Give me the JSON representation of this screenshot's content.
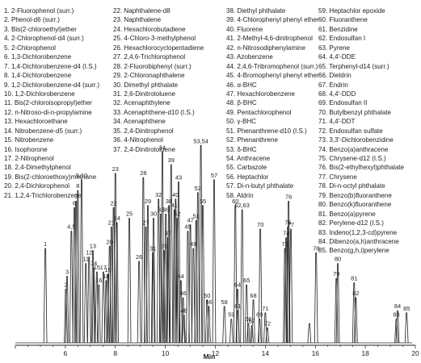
{
  "chart_data": {
    "type": "line",
    "xlabel": "Min",
    "xlim": [
      4,
      20
    ],
    "x_ticks": [
      "6",
      "8",
      "10",
      "12",
      "14",
      "16",
      "18",
      "20"
    ],
    "compounds": [
      "1. 2-Fluorophenol (surr.)",
      "2. Phenol-d6 (surr.)",
      "3. Bis(2-chloroethyl)ether",
      "4. 2-Chlorophenol-d4 (surr.)",
      "5. 2-Chlorophenol",
      "6. 1,3-Dichlorobenzene",
      "7. 1,4-Dichlorobenzene-d4 (I.S.)",
      "8. 1,4-Dichlorobenzene",
      "9. 1,2-Dichlorobenzene-d4 (surr.)",
      "10. 1,2-Dichlorobenzene",
      "11. Bis(2-chloroisopropyl)ether",
      "12. n-Nitroso-di-n-propylamine",
      "13. Hexachloroethane",
      "14. Nitrobenzene-d5 (surr.)",
      "15. Nitrobenzene",
      "16. Isophorone",
      "17. 2-Nitrophenol",
      "18. 2,4-Dimethylphenol",
      "19. Bis(2-chloroethoxy)methane",
      "20. 2,4-Dichlorophenol",
      "21. 1,2,4-Trichlorobenzene",
      "22. Naphthalene-d8",
      "23. Naphthalene",
      "24. Hexachlorobutadiene",
      "25. 4-Chloro-3-methylphenol",
      "26. Hexachlorocyclopentadiene",
      "27. 2,4,6-Trichlorophenol",
      "28. 2-Fluorobiphenyl (surr.)",
      "29. 2-Chloronaphthalene",
      "30. Dimethyl phthalate",
      "31. 2,6-Dinitrotoluene",
      "32. Acenaphthylene",
      "33. Acenaphthene-d10 (I.S.)",
      "34. Acenaphthene",
      "35. 2,4-Dinitrophenol",
      "36. 4-Nitrophenol",
      "37. 2,4-Dinitrotoluene",
      "38. Diethyl phthalate",
      "39. 4-Chlorophenyl phenyl ether",
      "40. Fluorene",
      "41. 2-Methyl-4,6-dinitrophenol",
      "42. n-Nitrosodiphenylamine",
      "43. Azobenzene",
      "44. 2,4,6-Tribromophenol (surr.)",
      "45. 4-Bromophenyl phenyl ether",
      "46. α-BHC",
      "47. Hexachlorobenzene",
      "48. β-BHC",
      "49. Pentachlorophenol",
      "50. γ-BHC",
      "51. Phenanthrene-d10 (I.S.)",
      "52. Phenanthrene",
      "53. δ-BHC",
      "54. Anthracene",
      "55. Carbazole",
      "56. Heptachlor",
      "57. Di-n-butyl phthalate",
      "58. Aldrin",
      "59. Heptachlor epoxide",
      "60. Fluoranthene",
      "61. Benzidine",
      "62. Endosulfan I",
      "63. Pyrene",
      "64. 4,4'-DDE",
      "65. Terphenyl-d14 (surr.)",
      "66. Dieldrin",
      "67. Endrin",
      "68. 4,4'-DDD",
      "69. Endosulfan II",
      "70. Butylbenzyl phthalate",
      "71. 4,4'-DDT",
      "72. Endosulfan sulfate",
      "73. 3,3'-Dichlorobenzidine",
      "74. Benzo(a)anthracene",
      "75. Chrysene-d12 (I.S.)",
      "76. Bis(2-ethylhexyl)phthalate",
      "77. Chrysene",
      "78. Di-n-octyl phthalate",
      "79. Benzo(b)fluoranthene",
      "80. Benzo(k)fluoranthene",
      "81. Benzo(a)pyrene",
      "82. Perylene-d12 (I.S.)",
      "83. Indeno(1,2,3-cd)pyrene",
      "84. Dibenzo(a,h)anthracene",
      "85. Benzo(g,h,i)perylene"
    ],
    "peaks": [
      {
        "label": "1",
        "rt": 5.2,
        "h": 0.44
      },
      {
        "label": "2",
        "rt": 6.02,
        "h": 0.25
      },
      {
        "label": "3",
        "rt": 6.07,
        "h": 0.31
      },
      {
        "label": "4,5",
        "rt": 6.24,
        "h": 0.52
      },
      {
        "label": "6",
        "rt": 6.36,
        "h": 0.63
      },
      {
        "label": "7",
        "rt": 6.43,
        "h": 0.66
      },
      {
        "label": "8",
        "rt": 6.5,
        "h": 0.71
      },
      {
        "label": "9,10",
        "rt": 6.65,
        "h": 0.76
      },
      {
        "label": "11",
        "rt": 6.82,
        "h": 0.37
      },
      {
        "label": "12",
        "rt": 6.95,
        "h": 0.4
      },
      {
        "label": "13",
        "rt": 7.1,
        "h": 0.43
      },
      {
        "label": "14",
        "rt": 7.14,
        "h": 0.35
      },
      {
        "label": "15",
        "rt": 7.26,
        "h": 0.33
      },
      {
        "label": "16",
        "rt": 7.34,
        "h": 0.27
      },
      {
        "label": "17",
        "rt": 7.52,
        "h": 0.33
      },
      {
        "label": "18",
        "rt": 7.63,
        "h": 0.29
      },
      {
        "label": "19",
        "rt": 7.7,
        "h": 0.32
      },
      {
        "label": "20",
        "rt": 7.77,
        "h": 0.45
      },
      {
        "label": "21",
        "rt": 7.84,
        "h": 0.54
      },
      {
        "label": "22",
        "rt": 7.93,
        "h": 0.63
      },
      {
        "label": "23",
        "rt": 8.0,
        "h": 0.79
      },
      {
        "label": "24",
        "rt": 8.06,
        "h": 0.56
      },
      {
        "label": "25",
        "rt": 8.56,
        "h": 0.58
      },
      {
        "label": "26",
        "rt": 8.95,
        "h": 0.38
      },
      {
        "label": "27",
        "rt": 9.22,
        "h": 0.54
      },
      {
        "label": "28",
        "rt": 9.12,
        "h": 0.77
      },
      {
        "label": "29",
        "rt": 9.3,
        "h": 0.64
      },
      {
        "label": "30",
        "rt": 9.53,
        "h": 0.58
      },
      {
        "label": "31",
        "rt": 9.5,
        "h": 0.42
      },
      {
        "label": "32",
        "rt": 9.73,
        "h": 0.67
      },
      {
        "label": "33",
        "rt": 9.82,
        "h": 0.6
      },
      {
        "label": "34",
        "rt": 9.88,
        "h": 0.89
      },
      {
        "label": "35",
        "rt": 9.95,
        "h": 0.43
      },
      {
        "label": "36",
        "rt": 10.02,
        "h": 0.6
      },
      {
        "label": "37",
        "rt": 10.1,
        "h": 0.49
      },
      {
        "label": "38",
        "rt": 10.14,
        "h": 0.64
      },
      {
        "label": "39",
        "rt": 10.23,
        "h": 0.83
      },
      {
        "label": "40",
        "rt": 10.41,
        "h": 0.67
      },
      {
        "label": "41",
        "rt": 10.36,
        "h": 0.62
      },
      {
        "label": "42",
        "rt": 10.48,
        "h": 0.58
      },
      {
        "label": "43",
        "rt": 10.53,
        "h": 0.75
      },
      {
        "label": "44",
        "rt": 10.62,
        "h": 0.29
      },
      {
        "label": "45",
        "rt": 10.9,
        "h": 0.52
      },
      {
        "label": "46",
        "rt": 10.71,
        "h": 0.21
      },
      {
        "label": "47",
        "rt": 11.0,
        "h": 0.55
      },
      {
        "label": "48",
        "rt": 10.74,
        "h": 0.13
      },
      {
        "label": "49",
        "rt": 11.12,
        "h": 0.44
      },
      {
        "label": "50",
        "rt": 11.67,
        "h": 0.2
      },
      {
        "label": "51",
        "rt": 11.23,
        "h": 0.57
      },
      {
        "label": "52",
        "rt": 11.3,
        "h": 0.7
      },
      {
        "label": "53,54",
        "rt": 11.42,
        "h": 0.92
      },
      {
        "label": "55",
        "rt": 11.5,
        "h": 0.64
      },
      {
        "label": "56",
        "rt": 11.74,
        "h": 0.17
      },
      {
        "label": "57",
        "rt": 11.95,
        "h": 0.76
      },
      {
        "label": "58",
        "rt": 12.36,
        "h": 0.17
      },
      {
        "label": "59",
        "rt": 12.64,
        "h": 0.11
      },
      {
        "label": "60",
        "rt": 12.8,
        "h": 0.64
      },
      {
        "label": "61",
        "rt": 12.9,
        "h": 0.15
      },
      {
        "label": "62,63",
        "rt": 13.07,
        "h": 0.62
      },
      {
        "label": "64",
        "rt": 12.89,
        "h": 0.25
      },
      {
        "label": "65",
        "rt": 13.25,
        "h": 0.27
      },
      {
        "label": "66",
        "rt": 13.32,
        "h": 0.09
      },
      {
        "label": "67",
        "rt": 13.46,
        "h": 0.08
      },
      {
        "label": "68",
        "rt": 13.52,
        "h": 0.2
      },
      {
        "label": "69",
        "rt": 13.77,
        "h": 0.11
      },
      {
        "label": "70",
        "rt": 13.8,
        "h": 0.53
      },
      {
        "label": "71",
        "rt": 14.0,
        "h": 0.14
      },
      {
        "label": "72",
        "rt": 14.08,
        "h": 0.07
      },
      {
        "label": "73",
        "rt": 14.78,
        "h": 0.44
      },
      {
        "label": "74",
        "rt": 14.83,
        "h": 0.49
      },
      {
        "label": "75",
        "rt": 14.9,
        "h": 0.54
      },
      {
        "label": "76",
        "rt": 14.93,
        "h": 0.66
      },
      {
        "label": "77",
        "rt": 15.02,
        "h": 0.53
      },
      {
        "label": "78",
        "rt": 16.03,
        "h": 0.42
      },
      {
        "label": "79",
        "rt": 16.84,
        "h": 0.3
      },
      {
        "label": "80",
        "rt": 16.9,
        "h": 0.37
      },
      {
        "label": "81",
        "rt": 17.55,
        "h": 0.28
      },
      {
        "label": "82",
        "rt": 17.62,
        "h": 0.21
      },
      {
        "label": "83",
        "rt": 19.24,
        "h": 0.11
      },
      {
        "label": "84",
        "rt": 19.29,
        "h": 0.15
      },
      {
        "label": "85",
        "rt": 19.65,
        "h": 0.14
      }
    ],
    "unlabeled_peaks": [
      {
        "rt": 15.76,
        "h": 0.09
      }
    ]
  }
}
